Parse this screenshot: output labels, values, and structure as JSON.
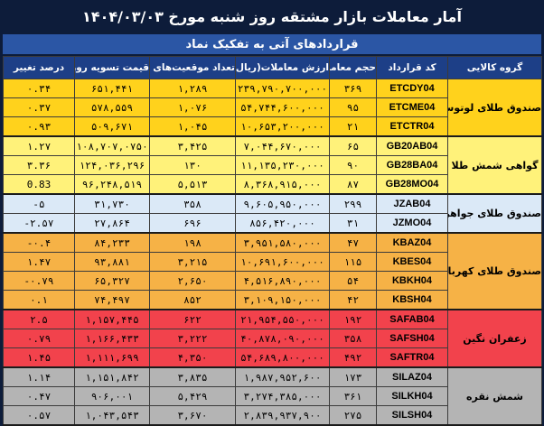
{
  "title": "آمار معاملات بازار مشتقه روز شنبه مورخ ۱۴۰۴/۰۳/۰۳",
  "subtitle": "قراردادهای آتی به تفکیک نماد",
  "headers": {
    "group": "گروه کالایی",
    "code": "کد قرارداد",
    "trades": "حجم معاملات",
    "value": "ارزش معاملات(ریال)",
    "oi": "تعداد موقعیت‌های باز",
    "price": "قیمت تسویه روزانه(ریال)",
    "change": "درصد تغییر"
  },
  "groups": [
    {
      "name": "صندوق طلای لوتوس",
      "color": "#ffd21c",
      "rows": [
        {
          "code": "ETCDY04",
          "trades": "۳۶۹",
          "value": "۲۳۹,۷۹۰,۷۰۰,۰۰۰",
          "oi": "۱,۲۸۹",
          "price": "۶۵۱,۴۴۱",
          "change": "۰.۳۴"
        },
        {
          "code": "ETCME04",
          "trades": "۹۵",
          "value": "۵۴,۷۴۴,۶۰۰,۰۰۰",
          "oi": "۱,۰۷۶",
          "price": "۵۷۸,۵۵۹",
          "change": "۰.۳۷"
        },
        {
          "code": "ETCTR04",
          "trades": "۲۱",
          "value": "۱۰,۶۵۳,۲۰۰,۰۰۰",
          "oi": "۱,۰۴۵",
          "price": "۵۰۹,۶۷۱",
          "change": "۰.۹۳"
        }
      ]
    },
    {
      "name": "گواهی شمش طلا",
      "color": "#fff27a",
      "rows": [
        {
          "code": "GB20AB04",
          "trades": "۶۵",
          "value": "۷,۰۴۴,۶۷۰,۰۰۰",
          "oi": "۳,۴۲۵",
          "price": "۱۰۸,۷۰۷,۰۷۵۰",
          "change": "۱.۲۷"
        },
        {
          "code": "GB28BA04",
          "trades": "۹۰",
          "value": "۱۱,۱۳۵,۲۳۰,۰۰۰",
          "oi": "۱۳۰",
          "price": "۱۲۴,۰۳۶,۲۹۶",
          "change": "۳.۳۶"
        },
        {
          "code": "GB28MO04",
          "trades": "۸۷",
          "value": "۸,۳۶۸,۹۱۵,۰۰۰",
          "oi": "۵,۵۱۳",
          "price": "۹۶,۲۴۸,۵۱۹",
          "change": "0.83"
        }
      ]
    },
    {
      "name": "صندوق طلای جواهر",
      "color": "#dbe9f7",
      "rows": [
        {
          "code": "JZAB04",
          "trades": "۲۹۹",
          "value": "۹,۶۰۵,۹۵۰,۰۰۰",
          "oi": "۳۵۸",
          "price": "۳۱,۷۳۰",
          "change": "-۵"
        },
        {
          "code": "JZMO04",
          "trades": "۳۱",
          "value": "۸۵۶,۴۲۰,۰۰۰",
          "oi": "۶۹۶",
          "price": "۲۷,۸۶۴",
          "change": "-۲.۵۷"
        }
      ]
    },
    {
      "name": "صندوق طلای کهربا",
      "color": "#f6b246",
      "rows": [
        {
          "code": "KBAZ04",
          "trades": "۴۷",
          "value": "۳,۹۵۱,۵۸۰,۰۰۰",
          "oi": "۱۹۸",
          "price": "۸۴,۲۳۳",
          "change": "-۰.۴"
        },
        {
          "code": "KBES04",
          "trades": "۱۱۵",
          "value": "۱۰,۶۹۱,۶۰۰,۰۰۰",
          "oi": "۳,۲۱۵",
          "price": "۹۳,۸۸۱",
          "change": "۱.۴۷"
        },
        {
          "code": "KBKH04",
          "trades": "۵۴",
          "value": "۴,۵۱۶,۸۹۰,۰۰۰",
          "oi": "۲,۶۵۰",
          "price": "۶۵,۳۲۷",
          "change": "-۰.۷۹"
        },
        {
          "code": "KBSH04",
          "trades": "۴۲",
          "value": "۳,۱۰۹,۱۵۰,۰۰۰",
          "oi": "۸۵۲",
          "price": "۷۴,۴۹۷",
          "change": "۰.۱"
        }
      ]
    },
    {
      "name": "زعفران نگین",
      "color": "#f2424c",
      "rows": [
        {
          "code": "SAFAB04",
          "trades": "۱۹۲",
          "value": "۲۱,۹۵۴,۵۵۰,۰۰۰",
          "oi": "۶۲۲",
          "price": "۱,۱۵۷,۴۴۵",
          "change": "۲.۵"
        },
        {
          "code": "SAFSH04",
          "trades": "۳۵۸",
          "value": "۴۰,۸۷۸,۰۹۰,۰۰۰",
          "oi": "۳,۲۲۲",
          "price": "۱,۱۶۶,۴۳۳",
          "change": "۰.۷۹"
        },
        {
          "code": "SAFTR04",
          "trades": "۴۹۲",
          "value": "۵۴,۶۸۹,۸۰۰,۰۰۰",
          "oi": "۴,۳۵۰",
          "price": "۱,۱۱۱,۶۹۹",
          "change": "۱.۴۵"
        }
      ]
    },
    {
      "name": "شمش نقره",
      "color": "#b4b4b4",
      "rows": [
        {
          "code": "SILAZ04",
          "trades": "۱۷۳",
          "value": "۱,۹۸۷,۹۵۲,۶۰۰",
          "oi": "۳,۸۳۵",
          "price": "۱,۱۵۱,۸۴۲",
          "change": "۱.۱۴"
        },
        {
          "code": "SILKH04",
          "trades": "۳۶۱",
          "value": "۳,۲۷۴,۳۸۵,۰۰۰",
          "oi": "۵,۴۲۹",
          "price": "۹۰۶,۰۰۱",
          "change": "۰.۴۷"
        },
        {
          "code": "SILSH04",
          "trades": "۲۷۵",
          "value": "۲,۸۳۹,۹۳۷,۹۰۰",
          "oi": "۳,۶۷۰",
          "price": "۱,۰۴۳,۵۴۳",
          "change": "۰.۵۷"
        }
      ]
    }
  ]
}
